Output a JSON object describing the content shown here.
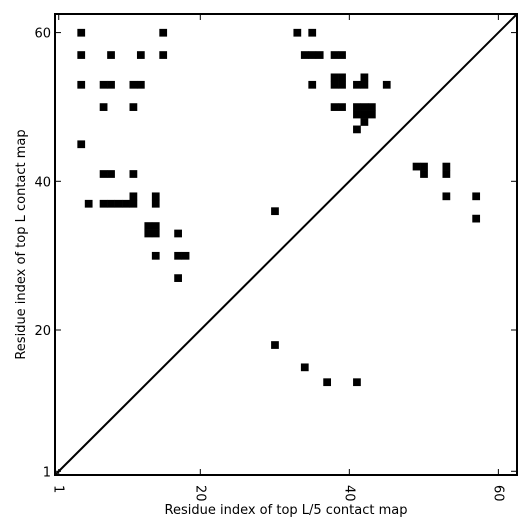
{
  "chart_data": {
    "type": "scatter",
    "title": "",
    "xlabel": "Residue index of top L/5 contact map",
    "ylabel": "Residue index of top L contact map",
    "xlim": [
      0.5,
      62.5
    ],
    "ylim": [
      0.5,
      62.5
    ],
    "xticks": [
      1,
      20,
      40,
      60
    ],
    "yticks": [
      1,
      20,
      40,
      60
    ],
    "xtick_labels": [
      "1",
      "20",
      "40",
      "60"
    ],
    "ytick_labels": [
      "1",
      "20",
      "40",
      "60"
    ],
    "diagonal": true,
    "marker": "square",
    "marker_color": "#000000",
    "grid": false,
    "series": [
      {
        "name": "",
        "points": [
          [
            4,
            60
          ],
          [
            4,
            57
          ],
          [
            4,
            53
          ],
          [
            4,
            45
          ],
          [
            5,
            37
          ],
          [
            7,
            53
          ],
          [
            7,
            50
          ],
          [
            7,
            41
          ],
          [
            7,
            37
          ],
          [
            8,
            57
          ],
          [
            8,
            53
          ],
          [
            8,
            41
          ],
          [
            8,
            37
          ],
          [
            9,
            37
          ],
          [
            10,
            37
          ],
          [
            11,
            53
          ],
          [
            11,
            50
          ],
          [
            11,
            41
          ],
          [
            11,
            38
          ],
          [
            11,
            37
          ],
          [
            12,
            57
          ],
          [
            12,
            53
          ],
          [
            13,
            34
          ],
          [
            13,
            33
          ],
          [
            14,
            34
          ],
          [
            14,
            33
          ],
          [
            14,
            38
          ],
          [
            14,
            37
          ],
          [
            14,
            30
          ],
          [
            15,
            60
          ],
          [
            15,
            57
          ],
          [
            17,
            33
          ],
          [
            17,
            30
          ],
          [
            17,
            27
          ],
          [
            18,
            30
          ],
          [
            30,
            36
          ],
          [
            30,
            18
          ],
          [
            33,
            60
          ],
          [
            34,
            57
          ],
          [
            34,
            15
          ],
          [
            35,
            60
          ],
          [
            35,
            57
          ],
          [
            35,
            53
          ],
          [
            36,
            57
          ],
          [
            37,
            13
          ],
          [
            38,
            57
          ],
          [
            38,
            54
          ],
          [
            38,
            53
          ],
          [
            38,
            50
          ],
          [
            39,
            57
          ],
          [
            39,
            54
          ],
          [
            39,
            53
          ],
          [
            39,
            50
          ],
          [
            41,
            53
          ],
          [
            41,
            50
          ],
          [
            41,
            49
          ],
          [
            41,
            47
          ],
          [
            41,
            13
          ],
          [
            42,
            54
          ],
          [
            42,
            53
          ],
          [
            42,
            50
          ],
          [
            42,
            49
          ],
          [
            42,
            48
          ],
          [
            43,
            50
          ],
          [
            43,
            49
          ],
          [
            45,
            53
          ],
          [
            49,
            42
          ],
          [
            50,
            42
          ],
          [
            50,
            41
          ],
          [
            53,
            42
          ],
          [
            53,
            41
          ],
          [
            53,
            38
          ],
          [
            57,
            38
          ],
          [
            57,
            35
          ]
        ]
      }
    ]
  }
}
